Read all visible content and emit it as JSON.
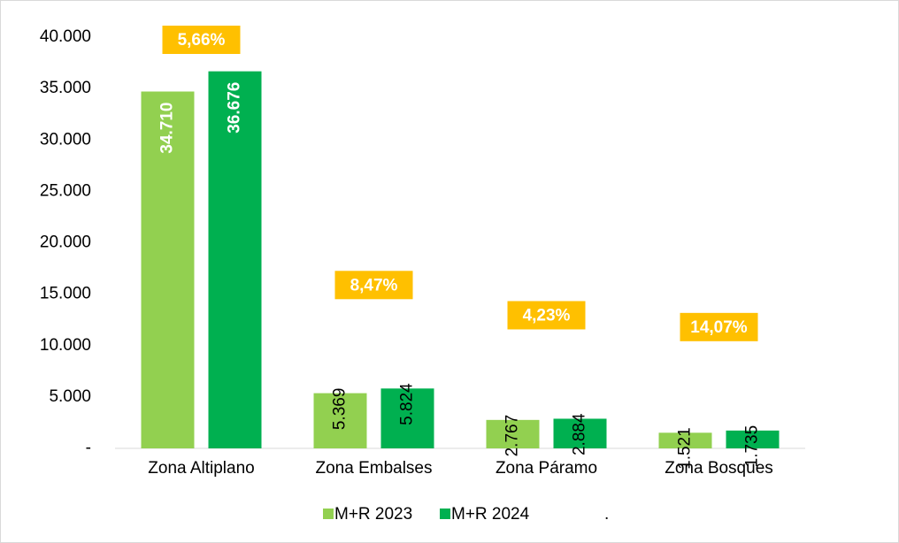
{
  "chart_data": {
    "type": "bar",
    "categories": [
      "Zona Altiplano",
      "Zona Embalses",
      "Zona Páramo",
      "Zona Bosques"
    ],
    "series": [
      {
        "name": "M+R 2023",
        "color": "#92d050",
        "values": [
          34710,
          5369,
          2767,
          1521
        ],
        "value_labels": [
          "34.710",
          "5.369",
          "2.767",
          "1.521"
        ]
      },
      {
        "name": "M+R 2024",
        "color": "#00b050",
        "values": [
          36676,
          5824,
          2884,
          1735
        ],
        "value_labels": [
          "36.676",
          "5.824",
          "2.884",
          "1.735"
        ]
      },
      {
        "name": ".",
        "color": "#ffc000",
        "values": [
          5.66,
          8.47,
          4.23,
          14.07
        ],
        "value_labels": [
          "5,66%",
          "8,47%",
          "4,23%",
          "14,07%"
        ]
      }
    ],
    "ylim": [
      0,
      40000
    ],
    "yticks": [
      {
        "value": 0,
        "label": "-"
      },
      {
        "value": 5000,
        "label": "5.000"
      },
      {
        "value": 10000,
        "label": "10.000"
      },
      {
        "value": 15000,
        "label": "15.000"
      },
      {
        "value": 20000,
        "label": "20.000"
      },
      {
        "value": 25000,
        "label": "25.000"
      },
      {
        "value": 30000,
        "label": "30.000"
      },
      {
        "value": 35000,
        "label": "35.000"
      },
      {
        "value": 40000,
        "label": "40.000"
      }
    ],
    "grid": false,
    "legend": "bottom"
  }
}
